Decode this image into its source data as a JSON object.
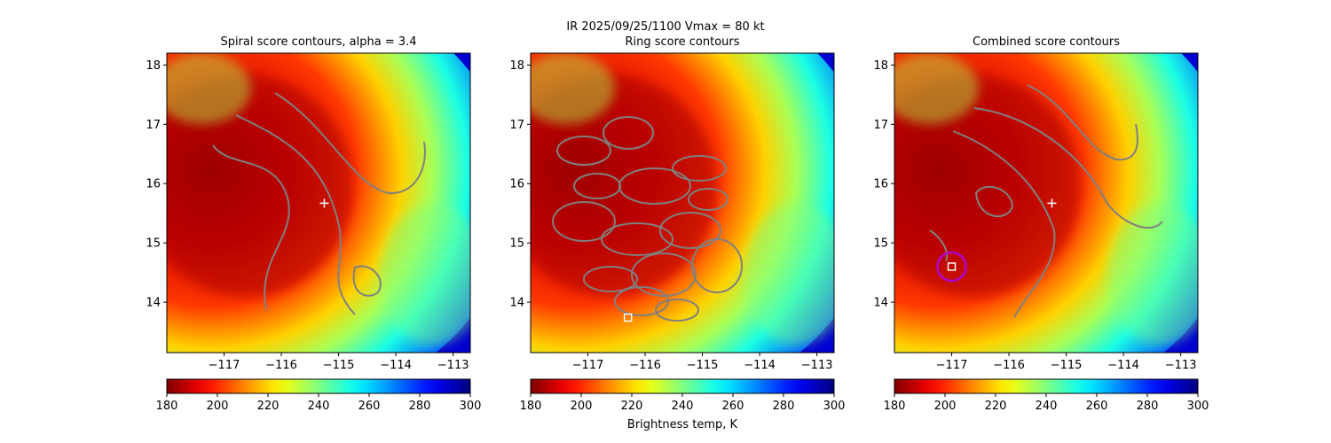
{
  "figure": {
    "suptitle_line1": "IR  2025/09/25/1100    Vmax = 80 kt",
    "colorbar_label": "Brightness temp, K"
  },
  "panels": [
    {
      "title": "Spiral score contours, alpha =  3.4"
    },
    {
      "title": "Ring score contours"
    },
    {
      "title": "Combined score contours"
    }
  ],
  "chart_data": [
    {
      "type": "heatmap",
      "title": "Spiral score contours, alpha =  3.4",
      "xlabel": "",
      "ylabel": "",
      "xlim": [
        -118.0,
        -112.7
      ],
      "ylim": [
        13.15,
        18.2
      ],
      "xticks": [
        -117,
        -116,
        -115,
        -114,
        -113
      ],
      "yticks": [
        14,
        15,
        16,
        17,
        18
      ],
      "colormap": "jet_r",
      "clim": [
        180,
        300
      ],
      "colorbar_ticks": [
        180,
        200,
        220,
        240,
        260,
        280,
        300
      ],
      "markers": [
        {
          "type": "plus",
          "x": -115.25,
          "y": 15.67,
          "color": "#ffffff"
        }
      ],
      "contour_color": "#808080"
    },
    {
      "type": "heatmap",
      "title": "Ring score contours",
      "xlabel": "",
      "ylabel": "",
      "xlim": [
        -118.0,
        -112.7
      ],
      "ylim": [
        13.15,
        18.2
      ],
      "xticks": [
        -117,
        -116,
        -115,
        -114,
        -113
      ],
      "yticks": [
        14,
        15,
        16,
        17,
        18
      ],
      "colormap": "jet_r",
      "clim": [
        180,
        300
      ],
      "colorbar_ticks": [
        180,
        200,
        220,
        240,
        260,
        280,
        300
      ],
      "markers": [
        {
          "type": "square",
          "x": -116.3,
          "y": 13.74,
          "color": "#ffffff"
        }
      ],
      "contour_color": "#808080"
    },
    {
      "type": "heatmap",
      "title": "Combined score contours",
      "xlabel": "",
      "ylabel": "",
      "xlim": [
        -118.0,
        -112.7
      ],
      "ylim": [
        13.15,
        18.2
      ],
      "xticks": [
        -117,
        -116,
        -115,
        -114,
        -113
      ],
      "yticks": [
        14,
        15,
        16,
        17,
        18
      ],
      "colormap": "jet_r",
      "clim": [
        180,
        300
      ],
      "colorbar_ticks": [
        180,
        200,
        220,
        240,
        260,
        280,
        300
      ],
      "markers": [
        {
          "type": "plus",
          "x": -115.25,
          "y": 15.67,
          "color": "#ffffff"
        },
        {
          "type": "square",
          "x": -117.0,
          "y": 14.6,
          "color": "#ffffff"
        },
        {
          "type": "circle",
          "x": -117.0,
          "y": 14.6,
          "color": "#b000d0"
        }
      ],
      "contour_color": "#808080"
    }
  ]
}
